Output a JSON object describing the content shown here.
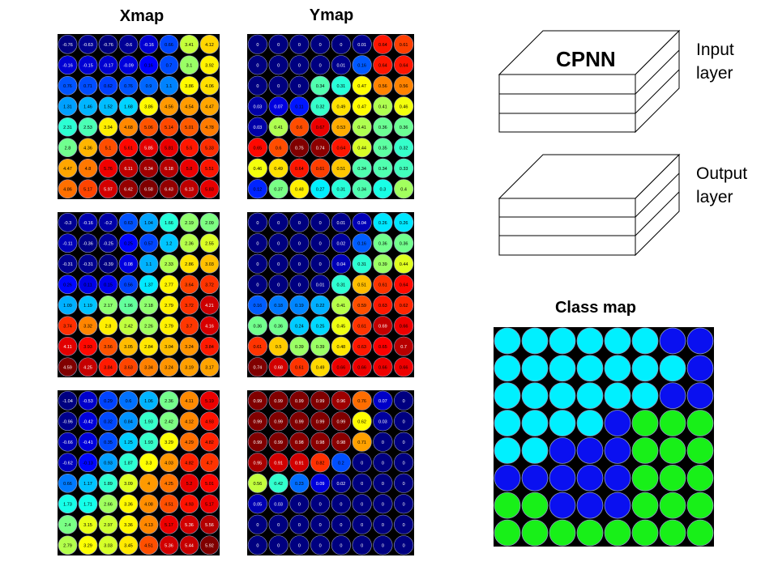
{
  "titles": {
    "xmap": "Xmap",
    "ymap": "Ymap",
    "class_map": "Class map",
    "cpnn": "CPNN"
  },
  "layers": {
    "input": "Input\nlayer",
    "output": "Output\nlayer"
  },
  "colors": {
    "background": "#000000",
    "class_cyan": "#00f0ff",
    "class_blue": "#0a10f0",
    "class_green": "#18f018"
  },
  "maps": [
    {
      "name": "xmap-1",
      "values": [
        [
          -0.76,
          -0.63,
          -0.76,
          -0.6,
          -0.16,
          0.66,
          3.41,
          4.12
        ],
        [
          -0.16,
          -0.15,
          -0.17,
          -0.09,
          0.16,
          0.7,
          3.1,
          3.92
        ],
        [
          0.76,
          0.71,
          0.62,
          0.76,
          0.9,
          1.1,
          3.86,
          4.06
        ],
        [
          1.31,
          1.46,
          1.52,
          1.68,
          3.86,
          4.56,
          4.54,
          4.47
        ],
        [
          2.31,
          2.53,
          3.94,
          4.68,
          5.06,
          5.14,
          5.01,
          4.78
        ],
        [
          2.8,
          4.36,
          5.1,
          5.61,
          5.85,
          5.81,
          5.5,
          5.33
        ],
        [
          4.47,
          4.8,
          5.76,
          6.11,
          6.34,
          6.18,
          5.8,
          5.51
        ],
        [
          4.86,
          5.17,
          5.97,
          6.42,
          6.58,
          6.43,
          6.13,
          5.83
        ]
      ]
    },
    {
      "name": "ymap-1",
      "values": [
        [
          0,
          0,
          0,
          0,
          0,
          0.01,
          0.64,
          0.61
        ],
        [
          0,
          0,
          0,
          0,
          0.01,
          0.16,
          0.64,
          0.64
        ],
        [
          0,
          0,
          0,
          0.34,
          0.31,
          0.47,
          0.56,
          0.56
        ],
        [
          0.03,
          0.07,
          0.11,
          0.32,
          0.49,
          0.47,
          0.41,
          0.46
        ],
        [
          0.03,
          0.41,
          0.6,
          0.67,
          0.53,
          0.41,
          0.36,
          0.36
        ],
        [
          0.65,
          0.6,
          0.75,
          0.74,
          0.64,
          0.44,
          0.35,
          0.32
        ],
        [
          0.46,
          0.49,
          0.64,
          0.61,
          0.51,
          0.34,
          0.34,
          0.33
        ],
        [
          0.12,
          0.37,
          0.48,
          0.27,
          0.31,
          0.34,
          0.3,
          0.4
        ]
      ]
    },
    {
      "name": "xmap-2",
      "values": [
        [
          -0.3,
          -0.16,
          -0.2,
          0.63,
          1.04,
          1.66,
          2.19,
          2.09
        ],
        [
          -0.11,
          -0.36,
          -0.25,
          0.25,
          0.57,
          1.2,
          2.36,
          2.55
        ],
        [
          -0.31,
          -0.31,
          -0.39,
          0.08,
          1.1,
          2.33,
          2.86,
          3.03
        ],
        [
          0.26,
          0.11,
          0.15,
          0.56,
          1.37,
          2.77,
          3.64,
          3.72
        ],
        [
          1.09,
          1.19,
          2.17,
          1.96,
          2.18,
          2.79,
          3.72,
          4.21
        ],
        [
          3.74,
          3.32,
          2.8,
          2.42,
          2.26,
          2.79,
          3.7,
          4.16
        ],
        [
          4.11,
          3.93,
          3.56,
          3.05,
          2.84,
          3.04,
          3.24,
          3.84
        ],
        [
          4.59,
          4.25,
          3.84,
          3.63,
          3.34,
          3.24,
          3.19,
          3.17
        ]
      ]
    },
    {
      "name": "ymap-2",
      "values": [
        [
          0,
          0,
          0,
          0,
          0.01,
          0.04,
          0.26,
          0.26
        ],
        [
          0,
          0,
          0,
          0,
          0.02,
          0.16,
          0.36,
          0.36
        ],
        [
          0,
          0,
          0,
          0,
          0.04,
          0.31,
          0.39,
          0.44
        ],
        [
          0,
          0,
          0,
          0.01,
          0.31,
          0.51,
          0.61,
          0.64
        ],
        [
          0.16,
          0.18,
          0.19,
          0.22,
          0.41,
          0.59,
          0.63,
          0.62
        ],
        [
          0.36,
          0.36,
          0.24,
          0.25,
          0.45,
          0.61,
          0.69,
          0.66
        ],
        [
          0.61,
          0.5,
          0.39,
          0.39,
          0.48,
          0.63,
          0.65,
          0.7
        ],
        [
          0.74,
          0.68,
          0.61,
          0.49,
          0.66,
          0.66,
          0.66,
          0.66
        ]
      ]
    },
    {
      "name": "xmap-3",
      "values": [
        [
          -1.04,
          -0.53,
          0.29,
          0.6,
          1.06,
          2.36,
          4.11,
          5.19
        ],
        [
          -0.96,
          -0.42,
          0.32,
          0.84,
          1.93,
          2.42,
          4.12,
          4.93
        ],
        [
          -0.66,
          -0.41,
          0.35,
          1.25,
          1.93,
          3.29,
          4.29,
          4.82
        ],
        [
          -0.62,
          -0.13,
          0.93,
          1.87,
          3.3,
          4.03,
          4.82,
          4.7
        ],
        [
          0.66,
          1.17,
          1.89,
          3.09,
          4,
          4.25,
          5.2,
          5.01
        ],
        [
          1.73,
          1.71,
          2.66,
          3.36,
          4.08,
          4.51,
          4.93,
          5.17
        ],
        [
          2.4,
          3.15,
          2.97,
          3.36,
          4.13,
          5.17,
          5.36,
          5.56
        ],
        [
          2.79,
          3.29,
          3.03,
          3.45,
          4.51,
          5.36,
          5.44,
          5.92
        ]
      ]
    },
    {
      "name": "ymap-3",
      "values": [
        [
          0.99,
          0.99,
          0.99,
          0.99,
          0.96,
          0.76,
          0.07,
          0
        ],
        [
          0.99,
          0.99,
          0.99,
          0.99,
          0.99,
          0.62,
          0.03,
          0
        ],
        [
          0.99,
          0.99,
          0.98,
          0.98,
          0.98,
          0.71,
          0,
          0
        ],
        [
          0.95,
          0.91,
          0.91,
          0.82,
          0.2,
          0,
          0,
          0
        ],
        [
          0.56,
          0.42,
          0.23,
          0.09,
          0.02,
          0,
          0,
          0
        ],
        [
          0.05,
          0.03,
          0,
          0,
          0,
          0,
          0,
          0
        ],
        [
          0,
          0,
          0,
          0,
          0,
          0,
          0,
          0
        ],
        [
          0,
          0,
          0,
          0,
          0,
          0,
          0,
          0
        ]
      ]
    }
  ],
  "class_map": [
    [
      "cyan",
      "cyan",
      "cyan",
      "cyan",
      "cyan",
      "cyan",
      "blue",
      "blue"
    ],
    [
      "cyan",
      "cyan",
      "cyan",
      "cyan",
      "cyan",
      "cyan",
      "cyan",
      "blue"
    ],
    [
      "cyan",
      "cyan",
      "cyan",
      "cyan",
      "cyan",
      "cyan",
      "blue",
      "blue"
    ],
    [
      "cyan",
      "cyan",
      "cyan",
      "cyan",
      "blue",
      "green",
      "green",
      "green"
    ],
    [
      "cyan",
      "cyan",
      "blue",
      "blue",
      "blue",
      "green",
      "green",
      "green"
    ],
    [
      "blue",
      "blue",
      "blue",
      "blue",
      "blue",
      "green",
      "green",
      "green"
    ],
    [
      "green",
      "green",
      "blue",
      "blue",
      "blue",
      "green",
      "green",
      "green"
    ],
    [
      "green",
      "green",
      "green",
      "green",
      "green",
      "green",
      "green",
      "green"
    ]
  ]
}
